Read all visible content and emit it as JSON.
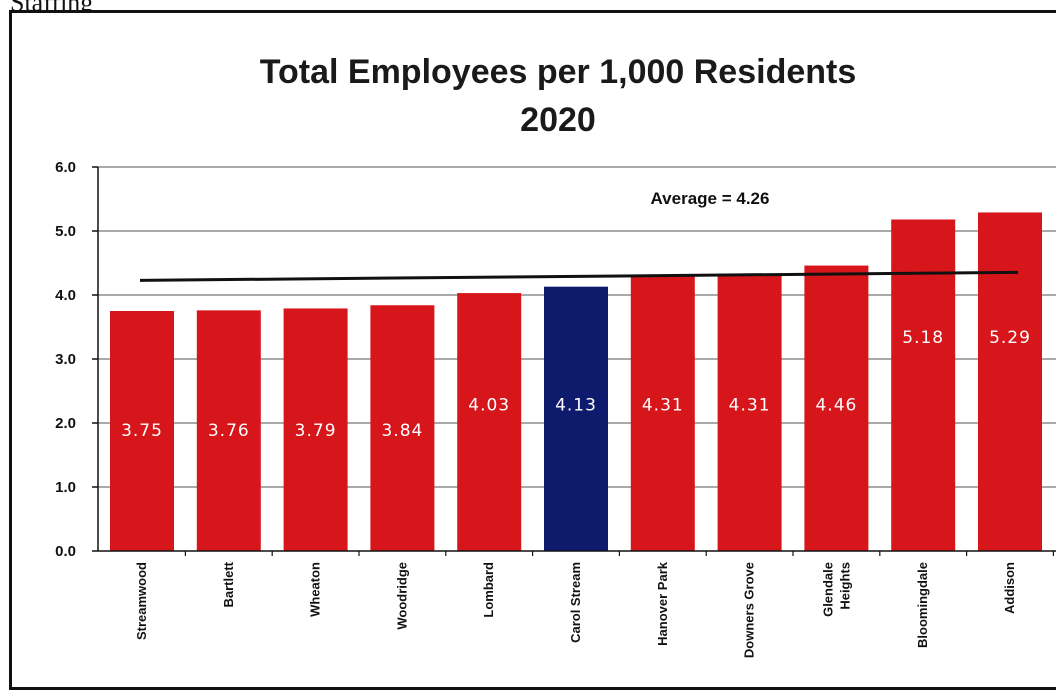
{
  "page_heading": "Staffing",
  "chart_data": {
    "type": "bar",
    "title_lines": [
      "Total Employees per 1,000 Residents",
      "2020"
    ],
    "categories": [
      [
        "Streamwood"
      ],
      [
        "Bartlett"
      ],
      [
        "Wheaton"
      ],
      [
        "Woodridge"
      ],
      [
        "Lombard"
      ],
      [
        "Carol Stream"
      ],
      [
        "Hanover Park"
      ],
      [
        "Downers Grove"
      ],
      [
        "Glendale",
        "Heights"
      ],
      [
        "Bloomingdale"
      ],
      [
        "Addison"
      ]
    ],
    "values": [
      3.75,
      3.76,
      3.79,
      3.84,
      4.03,
      4.13,
      4.31,
      4.31,
      4.46,
      5.18,
      5.29
    ],
    "value_labels": [
      "3.75",
      "3.76",
      "3.79",
      "3.84",
      "4.03",
      "4.13",
      "4.31",
      "4.31",
      "4.46",
      "5.18",
      "5.29"
    ],
    "highlight_category": "Carol Stream",
    "yticks": [
      "0.0",
      "1.0",
      "2.0",
      "3.0",
      "4.0",
      "5.0",
      "6.0"
    ],
    "ylim": [
      0,
      6
    ],
    "grid": true,
    "average": 4.26,
    "average_label": "Average = 4.26",
    "colors": {
      "bar": "#d7161c",
      "highlight": "#0e1a6b",
      "average_line": "#111111"
    }
  }
}
